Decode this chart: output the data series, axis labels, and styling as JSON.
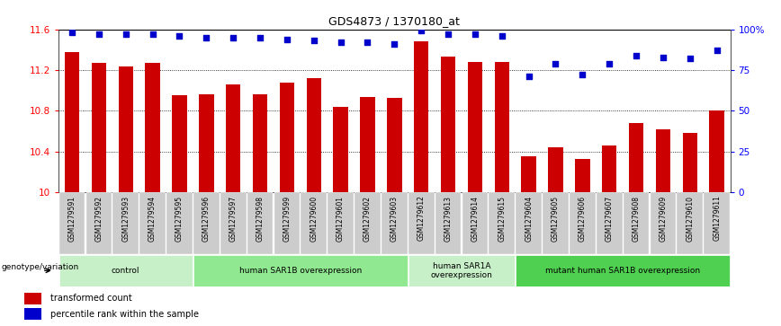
{
  "title": "GDS4873 / 1370180_at",
  "samples": [
    "GSM1279591",
    "GSM1279592",
    "GSM1279593",
    "GSM1279594",
    "GSM1279595",
    "GSM1279596",
    "GSM1279597",
    "GSM1279598",
    "GSM1279599",
    "GSM1279600",
    "GSM1279601",
    "GSM1279602",
    "GSM1279603",
    "GSM1279612",
    "GSM1279613",
    "GSM1279614",
    "GSM1279615",
    "GSM1279604",
    "GSM1279605",
    "GSM1279606",
    "GSM1279607",
    "GSM1279608",
    "GSM1279609",
    "GSM1279610",
    "GSM1279611"
  ],
  "bar_values": [
    11.38,
    11.27,
    11.24,
    11.27,
    10.95,
    10.96,
    11.06,
    10.96,
    11.08,
    11.12,
    10.84,
    10.94,
    10.93,
    11.48,
    11.33,
    11.28,
    11.28,
    10.35,
    10.44,
    10.33,
    10.46,
    10.68,
    10.62,
    10.58,
    10.8
  ],
  "percentile_values": [
    98,
    97,
    97,
    97,
    96,
    95,
    95,
    95,
    94,
    93,
    92,
    92,
    91,
    99,
    97,
    97,
    96,
    71,
    79,
    72,
    79,
    84,
    83,
    82,
    87
  ],
  "ylim_left": [
    10.0,
    11.6
  ],
  "ylim_right": [
    0,
    100
  ],
  "yticks_left": [
    10.0,
    10.4,
    10.8,
    11.2,
    11.6
  ],
  "ytick_labels_left": [
    "10",
    "10.4",
    "10.8",
    "11.2",
    "11.6"
  ],
  "yticks_right": [
    0,
    25,
    50,
    75,
    100
  ],
  "ytick_labels_right": [
    "0",
    "25",
    "50",
    "75",
    "100%"
  ],
  "groups": [
    {
      "label": "control",
      "start": 0,
      "end": 5,
      "color": "#c8f0c8"
    },
    {
      "label": "human SAR1B overexpression",
      "start": 5,
      "end": 13,
      "color": "#90e890"
    },
    {
      "label": "human SAR1A\noverexpression",
      "start": 13,
      "end": 17,
      "color": "#c8f0c8"
    },
    {
      "label": "mutant human SAR1B overexpression",
      "start": 17,
      "end": 25,
      "color": "#50d050"
    }
  ],
  "bar_color": "#cc0000",
  "percentile_color": "#0000cc",
  "legend_label_bar": "transformed count",
  "legend_label_pct": "percentile rank within the sample",
  "genotype_label": "genotype/variation"
}
